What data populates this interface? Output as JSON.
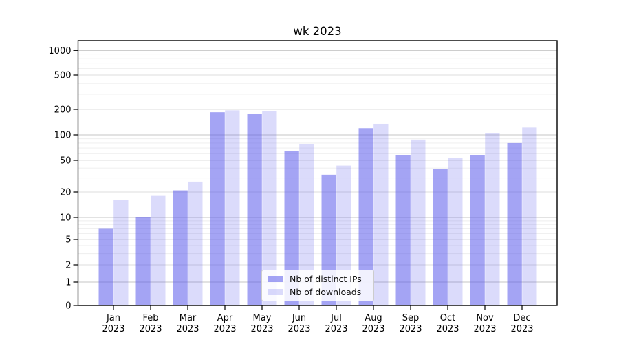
{
  "chart_data": {
    "type": "bar",
    "title": "wk 2023",
    "categories": [
      "Jan",
      "Feb",
      "Mar",
      "Apr",
      "May",
      "Jun",
      "Jul",
      "Aug",
      "Sep",
      "Oct",
      "Nov",
      "Dec"
    ],
    "category_year": "2023",
    "series": [
      {
        "name": "Nb of distinct IPs",
        "color": "rgba(90,90,235,0.55)",
        "values": [
          7,
          10,
          21,
          185,
          178,
          64,
          33,
          120,
          58,
          39,
          57,
          80
        ]
      },
      {
        "name": "Nb of downloads",
        "color": "rgba(90,90,235,0.22)",
        "values": [
          16,
          18,
          27,
          195,
          190,
          78,
          43,
          135,
          88,
          53,
          105,
          122
        ]
      }
    ],
    "xlabel": "",
    "ylabel": "",
    "yscale": "symlog",
    "yticks": [
      0,
      1,
      2,
      5,
      10,
      20,
      50,
      100,
      200,
      500,
      1000
    ],
    "ylim": [
      0,
      1300
    ],
    "grid": true,
    "legend_position": "lower center",
    "colors": {
      "major_grid": "#c6c6c6",
      "secondary_grid": "#dcdcdc",
      "minor_grid": "#eeeeee",
      "axis": "#000000",
      "text": "#000000"
    }
  }
}
